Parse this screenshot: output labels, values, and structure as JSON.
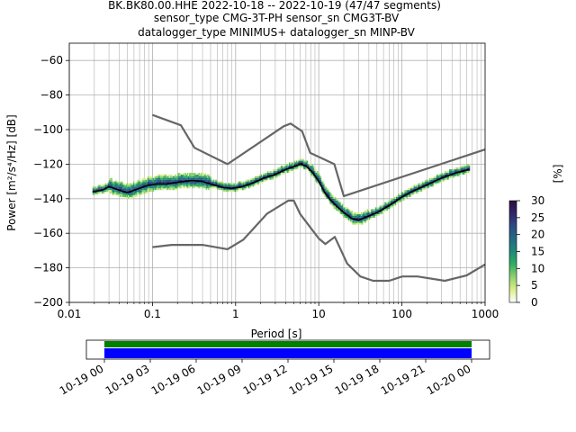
{
  "title": {
    "line1": "BK.BK80.00.HHE   2022-10-18 -- 2022-10-19  (47/47 segments)",
    "line2": "sensor_type CMG-3T-PH sensor_sn CMG3T-BV",
    "line3": "datalogger_type MINIMUS+ datalogger_sn MINP-BV"
  },
  "chart_data": [
    {
      "type": "heatmap",
      "xlabel": "Period [s]",
      "ylabel": "Power [m²/s⁴/Hz] [dB]",
      "xscale": "log",
      "xlim": [
        0.01,
        1000
      ],
      "ylim": [
        -200,
        -50
      ],
      "xticks": [
        {
          "value": 0.01,
          "label": "0.01"
        },
        {
          "value": 0.1,
          "label": "0.1"
        },
        {
          "value": 1,
          "label": "1"
        },
        {
          "value": 10,
          "label": "10"
        },
        {
          "value": 100,
          "label": "100"
        },
        {
          "value": 1000,
          "label": "1000"
        }
      ],
      "yticks": [
        -200,
        -180,
        -160,
        -140,
        -120,
        -100,
        -80,
        -60
      ],
      "grid": true,
      "colorbar": {
        "label": "[%]",
        "range": [
          0,
          30
        ],
        "ticks": [
          0,
          5,
          10,
          15,
          20,
          25,
          30
        ],
        "colors": [
          "#ffffff",
          "#d9ef8b",
          "#8fd16f",
          "#2fae63",
          "#1f8a78",
          "#226a86",
          "#2c4b84",
          "#33246b",
          "#2a0e3f"
        ]
      },
      "series": [
        {
          "role": "mean",
          "color": "#000000",
          "points": [
            [
              0.019,
              -136
            ],
            [
              0.025,
              -135
            ],
            [
              0.03,
              -133
            ],
            [
              0.04,
              -135
            ],
            [
              0.05,
              -136.5
            ],
            [
              0.065,
              -134.5
            ],
            [
              0.085,
              -132.5
            ],
            [
              0.11,
              -131.5
            ],
            [
              0.15,
              -131.5
            ],
            [
              0.2,
              -130.5
            ],
            [
              0.3,
              -129.5
            ],
            [
              0.4,
              -130
            ],
            [
              0.5,
              -131.5
            ],
            [
              0.7,
              -133.5
            ],
            [
              0.9,
              -134
            ],
            [
              1.2,
              -133
            ],
            [
              1.6,
              -131
            ],
            [
              2.2,
              -128
            ],
            [
              3,
              -126
            ],
            [
              4,
              -123
            ],
            [
              5,
              -121.5
            ],
            [
              6,
              -120
            ],
            [
              7,
              -121
            ],
            [
              8.5,
              -125
            ],
            [
              10,
              -130
            ],
            [
              12,
              -137
            ],
            [
              14,
              -141
            ],
            [
              17,
              -145
            ],
            [
              20,
              -148
            ],
            [
              25,
              -151.5
            ],
            [
              30,
              -152.5
            ],
            [
              40,
              -150
            ],
            [
              50,
              -148
            ],
            [
              70,
              -144
            ],
            [
              100,
              -139
            ],
            [
              130,
              -136
            ],
            [
              200,
              -132
            ],
            [
              300,
              -128
            ],
            [
              450,
              -125
            ],
            [
              650,
              -123
            ]
          ]
        },
        {
          "role": "NHNM",
          "color": "#666666",
          "points": [
            [
              0.1,
              -91.5
            ],
            [
              0.22,
              -97.5
            ],
            [
              0.32,
              -110.5
            ],
            [
              0.8,
              -120
            ],
            [
              3.8,
              -98
            ],
            [
              4.6,
              -96.5
            ],
            [
              6.3,
              -101
            ],
            [
              7.9,
              -113.5
            ],
            [
              15.4,
              -120
            ],
            [
              20,
              -138.5
            ],
            [
              1000,
              -111.5
            ]
          ]
        },
        {
          "role": "NLNM",
          "color": "#666666",
          "points": [
            [
              0.1,
              -168
            ],
            [
              0.17,
              -166.7
            ],
            [
              0.4,
              -166.7
            ],
            [
              0.8,
              -169.2
            ],
            [
              1.24,
              -163.7
            ],
            [
              2.4,
              -148.6
            ],
            [
              4.3,
              -141.1
            ],
            [
              5,
              -141.1
            ],
            [
              6,
              -149
            ],
            [
              10,
              -163
            ],
            [
              12,
              -166.2
            ],
            [
              15.6,
              -162.1
            ],
            [
              21.9,
              -177.5
            ],
            [
              31.6,
              -185
            ],
            [
              45,
              -187.5
            ],
            [
              70,
              -187.5
            ],
            [
              101,
              -185
            ],
            [
              154,
              -185
            ],
            [
              328,
              -187.5
            ],
            [
              600,
              -184.4
            ],
            [
              1000,
              -178
            ]
          ]
        }
      ]
    },
    {
      "type": "timeline",
      "xlim": [
        "2022-10-19 00:00",
        "2022-10-20 00:00"
      ],
      "xticks": [
        "10-19 00",
        "10-19 03",
        "10-19 06",
        "10-19 09",
        "10-19 12",
        "10-19 15",
        "10-19 18",
        "10-19 21",
        "10-20 00"
      ],
      "bars": [
        {
          "role": "data coverage",
          "color": "#008000",
          "start": "2022-10-19 00:00",
          "end": "2022-10-20 00:00"
        },
        {
          "role": "PSD segments",
          "color": "#0000ff",
          "start": "2022-10-19 00:00",
          "end": "2022-10-20 00:00"
        }
      ]
    }
  ]
}
